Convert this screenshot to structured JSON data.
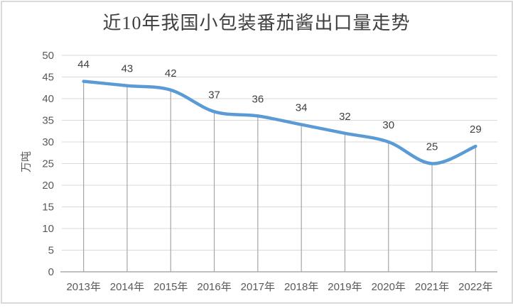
{
  "chart_data": {
    "type": "line",
    "title": "近10年我国小包装番茄酱出口量走势",
    "xlabel": "",
    "ylabel": "万吨",
    "categories": [
      "2013年",
      "2014年",
      "2015年",
      "2016年",
      "2017年",
      "2018年",
      "2019年",
      "2020年",
      "2021年",
      "2022年"
    ],
    "values": [
      44,
      43,
      42,
      37,
      36,
      34,
      32,
      30,
      25,
      29
    ],
    "ylim": [
      0,
      50
    ],
    "ytick_interval": 5,
    "ytick_labels": [
      "0",
      "5",
      "10",
      "15",
      "20",
      "25",
      "30",
      "35",
      "40",
      "45",
      "50"
    ],
    "grid": {
      "horizontal": true,
      "vertical": false,
      "drop_lines": true
    },
    "legend_position": "none",
    "smoothed_line": true
  },
  "style": {
    "line_color": "#5B9BD5",
    "gridline_color": "#D9D9D9",
    "axis_line_color": "#ABABAB",
    "drop_line_color": "#A6A6A6",
    "tick_label_color": "#595959",
    "data_label_color": "#404040",
    "title_color": "#3F3F3F",
    "y_axis_title_color": "#595959",
    "frame_border_color": "#D9D9D9",
    "background": "#FFFFFF"
  }
}
